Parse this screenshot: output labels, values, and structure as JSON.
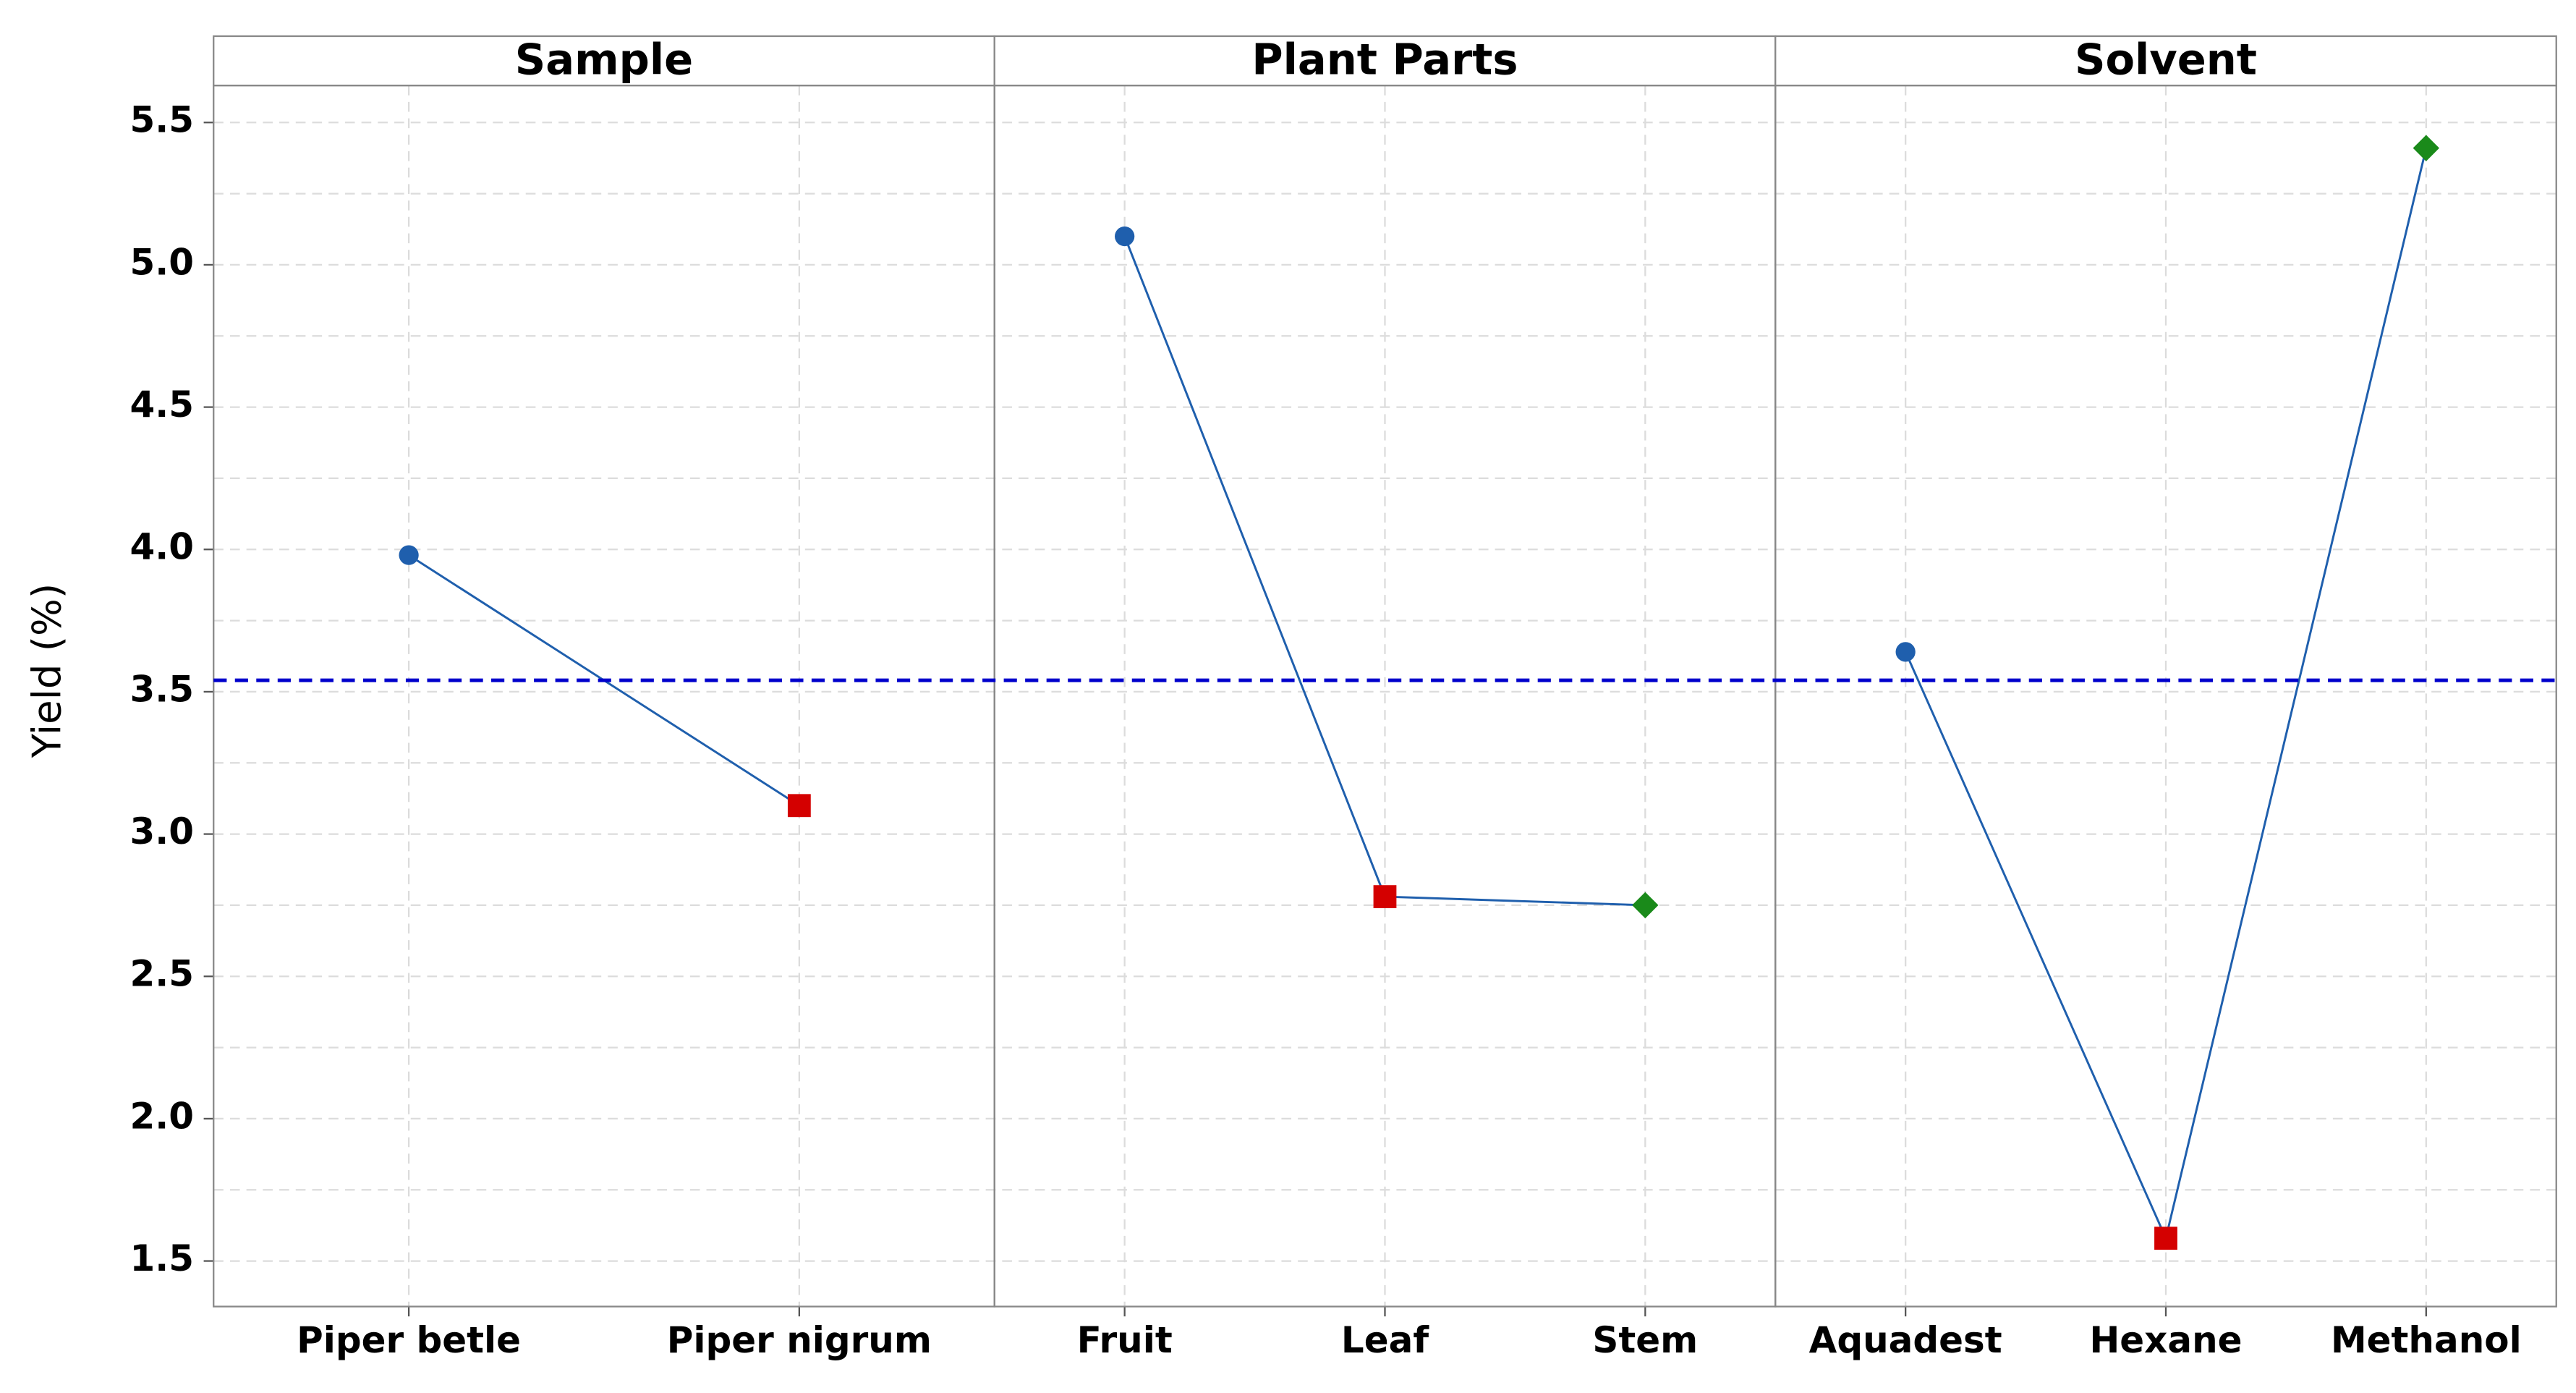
{
  "chart_data": {
    "type": "main_effects",
    "ylabel": "Yield (%)",
    "ylim": [
      1.34,
      5.63
    ],
    "yticks": [
      1.5,
      {
        "value": 2,
        "label": "2.0"
      },
      2.5,
      {
        "value": 3,
        "label": "3.0"
      },
      3.5,
      {
        "value": 4,
        "label": "4.0"
      },
      4.5,
      {
        "value": 5,
        "label": "5.0"
      },
      5.5
    ],
    "minor_yticks": [
      1.75,
      2.25,
      2.75,
      3.25,
      3.75,
      4.25,
      4.75,
      5.25
    ],
    "grid": true,
    "mean": 3.54,
    "mean_color": "#0000cc",
    "line_color": "#1f5fad",
    "marker_colors": [
      "#1f5fad",
      "#d40000",
      "#1a8a1a"
    ],
    "panels": [
      {
        "title": "Sample",
        "categories": [
          "Piper betle",
          "Piper nigrum"
        ],
        "values": [
          3.98,
          3.1
        ]
      },
      {
        "title": "Plant Parts",
        "categories": [
          "Fruit",
          "Leaf",
          "Stem"
        ],
        "values": [
          5.1,
          2.78,
          2.75
        ]
      },
      {
        "title": "Solvent",
        "categories": [
          "Aquadest",
          "Hexane",
          "Methanol"
        ],
        "values": [
          3.64,
          1.58,
          5.41
        ]
      }
    ]
  }
}
